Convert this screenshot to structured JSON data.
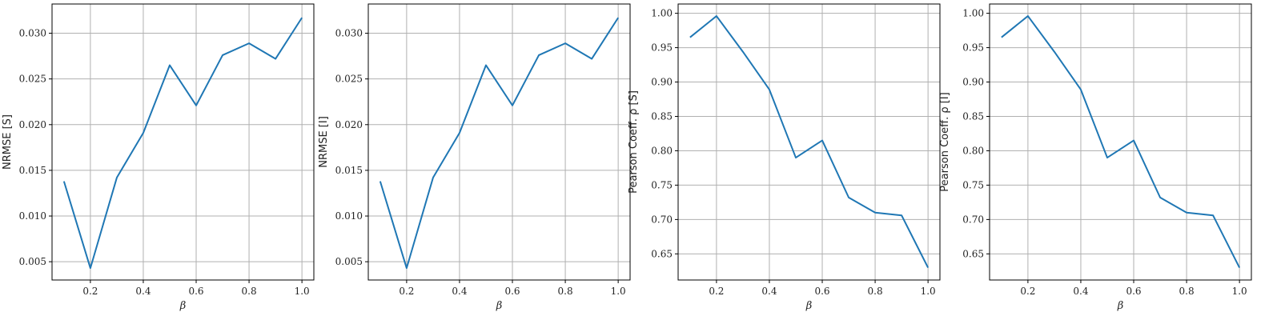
{
  "colors": {
    "series": "#1f77b4",
    "grid": "#b0b0b0"
  },
  "chart_data": [
    {
      "type": "line",
      "xlabel": "β",
      "ylabel": "NRMSE [S]",
      "grid": true,
      "xlim": [
        0.055,
        1.045
      ],
      "ylim": [
        0.003,
        0.0332
      ],
      "xticks": [
        "0.2",
        "0.4",
        "0.6",
        "0.8",
        "1.0"
      ],
      "yticks": [
        "0.005",
        "0.010",
        "0.015",
        "0.020",
        "0.025",
        "0.030"
      ],
      "x": [
        0.1,
        0.2,
        0.3,
        0.4,
        0.5,
        0.6,
        0.7,
        0.8,
        0.9,
        1.0
      ],
      "series": [
        {
          "values": [
            0.0138,
            0.0043,
            0.0142,
            0.0191,
            0.0265,
            0.0221,
            0.0276,
            0.0289,
            0.0272,
            0.0317
          ]
        }
      ]
    },
    {
      "type": "line",
      "xlabel": "β",
      "ylabel": "NRMSE [I]",
      "grid": true,
      "xlim": [
        0.055,
        1.045
      ],
      "ylim": [
        0.003,
        0.0332
      ],
      "xticks": [
        "0.2",
        "0.4",
        "0.6",
        "0.8",
        "1.0"
      ],
      "yticks": [
        "0.005",
        "0.010",
        "0.015",
        "0.020",
        "0.025",
        "0.030"
      ],
      "x": [
        0.1,
        0.2,
        0.3,
        0.4,
        0.5,
        0.6,
        0.7,
        0.8,
        0.9,
        1.0
      ],
      "series": [
        {
          "values": [
            0.0138,
            0.0043,
            0.0142,
            0.0191,
            0.0265,
            0.0221,
            0.0276,
            0.0289,
            0.0272,
            0.0317
          ]
        }
      ]
    },
    {
      "type": "line",
      "xlabel": "β",
      "ylabel": "Pearson Coeff. ρ [S]",
      "grid": true,
      "xlim": [
        0.055,
        1.045
      ],
      "ylim": [
        0.612,
        1.0135
      ],
      "xticks": [
        "0.2",
        "0.4",
        "0.6",
        "0.8",
        "1.0"
      ],
      "yticks": [
        "0.65",
        "0.70",
        "0.75",
        "0.80",
        "0.85",
        "0.90",
        "0.95",
        "1.00"
      ],
      "x": [
        0.1,
        0.2,
        0.3,
        0.4,
        0.5,
        0.6,
        0.7,
        0.8,
        0.9,
        1.0
      ],
      "series": [
        {
          "values": [
            0.965,
            0.996,
            0.944,
            0.889,
            0.79,
            0.815,
            0.732,
            0.71,
            0.706,
            0.63
          ]
        }
      ]
    },
    {
      "type": "line",
      "xlabel": "β",
      "ylabel": "Pearson Coeff. ρ [I]",
      "grid": true,
      "xlim": [
        0.055,
        1.045
      ],
      "ylim": [
        0.612,
        1.0135
      ],
      "xticks": [
        "0.2",
        "0.4",
        "0.6",
        "0.8",
        "1.0"
      ],
      "yticks": [
        "0.65",
        "0.70",
        "0.75",
        "0.80",
        "0.85",
        "0.90",
        "0.95",
        "1.00"
      ],
      "x": [
        0.1,
        0.2,
        0.3,
        0.4,
        0.5,
        0.6,
        0.7,
        0.8,
        0.9,
        1.0
      ],
      "series": [
        {
          "values": [
            0.965,
            0.996,
            0.944,
            0.889,
            0.79,
            0.815,
            0.732,
            0.71,
            0.706,
            0.63
          ]
        }
      ]
    }
  ]
}
